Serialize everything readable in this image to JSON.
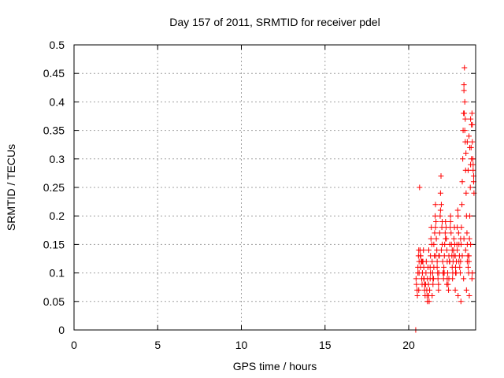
{
  "chart_data": {
    "type": "scatter",
    "title": "Day 157 of 2011, SRMTID for receiver pdel",
    "xlabel": "GPS time / hours",
    "ylabel": "SRMTID / TECUs",
    "xlim": [
      0,
      24
    ],
    "ylim": [
      0,
      0.5
    ],
    "xticks": [
      0,
      5,
      10,
      15,
      20
    ],
    "xtick_labels": [
      "0",
      "5",
      "10",
      "15",
      "20"
    ],
    "yticks": [
      0,
      0.05,
      0.1,
      0.15,
      0.2,
      0.25,
      0.3,
      0.35,
      0.4,
      0.45,
      0.5
    ],
    "ytick_labels": [
      "0",
      "0.05",
      "0.1",
      "0.15",
      "0.2",
      "0.25",
      "0.3",
      "0.35",
      "0.4",
      "0.45",
      "0.5"
    ],
    "grid": true,
    "legend": "none",
    "marker": "+",
    "series": [
      {
        "color": "#ff0000",
        "x": [
          20.42,
          20.44,
          20.46,
          20.5,
          20.52,
          20.55,
          20.58,
          20.6,
          20.62,
          20.65,
          20.68,
          20.7,
          20.72,
          20.75,
          20.78,
          20.8,
          20.82,
          20.85,
          20.88,
          20.9,
          20.92,
          20.95,
          20.98,
          21.0,
          21.03,
          21.05,
          21.08,
          21.1,
          21.12,
          21.15,
          21.18,
          21.2,
          21.22,
          21.25,
          21.28,
          21.3,
          21.33,
          21.35,
          21.38,
          21.4,
          21.43,
          21.45,
          21.48,
          21.5,
          21.53,
          21.55,
          21.58,
          21.6,
          21.63,
          21.65,
          21.68,
          21.7,
          21.73,
          21.75,
          21.78,
          21.8,
          21.83,
          21.85,
          21.88,
          21.9,
          21.93,
          21.95,
          21.98,
          22.0,
          22.03,
          22.05,
          22.08,
          22.1,
          22.13,
          22.15,
          22.18,
          22.2,
          22.23,
          22.25,
          22.28,
          22.3,
          22.33,
          22.35,
          22.38,
          22.4,
          22.43,
          22.45,
          22.48,
          22.5,
          22.53,
          22.55,
          22.58,
          22.6,
          22.63,
          22.65,
          22.68,
          22.7,
          22.73,
          22.75,
          22.78,
          22.8,
          22.83,
          22.85,
          22.88,
          22.9,
          22.93,
          22.95,
          22.98,
          23.0,
          23.03,
          23.05,
          23.08,
          23.1,
          23.13,
          23.15,
          23.18,
          23.2,
          23.23,
          23.25,
          23.28,
          23.3,
          23.33,
          23.35,
          23.38,
          23.4,
          23.43,
          23.45,
          23.48,
          23.5,
          23.53,
          23.55,
          23.58,
          23.6,
          23.63,
          23.65,
          23.68,
          23.7,
          23.73,
          23.75,
          23.78,
          23.8,
          23.83,
          23.85,
          23.88,
          23.9,
          20.55,
          20.6,
          20.7,
          20.8,
          20.9,
          21.0,
          21.1,
          21.2,
          21.3,
          21.4,
          21.5,
          21.6,
          21.7,
          21.8,
          21.9,
          22.0,
          22.1,
          22.2,
          22.3,
          22.4,
          22.5,
          22.6,
          22.7,
          22.8,
          22.9,
          23.0,
          23.1,
          23.2,
          23.3,
          23.4,
          23.5,
          23.6,
          23.7,
          23.8,
          20.62,
          20.78,
          20.95,
          21.12,
          21.28,
          21.45,
          21.62,
          21.78,
          21.95,
          22.12,
          22.28,
          22.45,
          22.62,
          22.78,
          22.95,
          23.12,
          23.28,
          23.45,
          23.62,
          23.78,
          23.3,
          23.32,
          23.35,
          23.38,
          23.42,
          23.5,
          23.55,
          23.6,
          23.65,
          23.7,
          23.75,
          23.8,
          23.85,
          23.88
        ],
        "y": [
          0.0,
          0.09,
          0.08,
          0.07,
          0.06,
          0.1,
          0.13,
          0.14,
          0.12,
          0.25,
          0.14,
          0.11,
          0.13,
          0.12,
          0.09,
          0.08,
          0.1,
          0.12,
          0.14,
          0.11,
          0.09,
          0.07,
          0.06,
          0.08,
          0.1,
          0.12,
          0.07,
          0.06,
          0.09,
          0.11,
          0.08,
          0.06,
          0.05,
          0.07,
          0.09,
          0.13,
          0.16,
          0.18,
          0.15,
          0.12,
          0.1,
          0.08,
          0.09,
          0.11,
          0.13,
          0.17,
          0.2,
          0.22,
          0.19,
          0.16,
          0.14,
          0.12,
          0.1,
          0.09,
          0.08,
          0.1,
          0.13,
          0.17,
          0.2,
          0.24,
          0.27,
          0.22,
          0.18,
          0.15,
          0.12,
          0.1,
          0.09,
          0.11,
          0.13,
          0.15,
          0.17,
          0.19,
          0.18,
          0.16,
          0.14,
          0.12,
          0.1,
          0.08,
          0.07,
          0.09,
          0.12,
          0.15,
          0.18,
          0.2,
          0.17,
          0.15,
          0.13,
          0.11,
          0.1,
          0.12,
          0.14,
          0.16,
          0.18,
          0.15,
          0.13,
          0.11,
          0.1,
          0.12,
          0.15,
          0.18,
          0.21,
          0.2,
          0.17,
          0.15,
          0.13,
          0.11,
          0.1,
          0.12,
          0.15,
          0.18,
          0.22,
          0.26,
          0.3,
          0.35,
          0.38,
          0.42,
          0.46,
          0.4,
          0.33,
          0.28,
          0.24,
          0.2,
          0.17,
          0.15,
          0.13,
          0.11,
          0.1,
          0.12,
          0.16,
          0.2,
          0.25,
          0.29,
          0.32,
          0.36,
          0.38,
          0.33,
          0.3,
          0.28,
          0.26,
          0.24,
          0.11,
          0.07,
          0.13,
          0.12,
          0.09,
          0.08,
          0.06,
          0.14,
          0.1,
          0.06,
          0.15,
          0.18,
          0.11,
          0.13,
          0.21,
          0.19,
          0.1,
          0.16,
          0.09,
          0.13,
          0.19,
          0.14,
          0.13,
          0.1,
          0.14,
          0.12,
          0.16,
          0.13,
          0.16,
          0.14,
          0.12,
          0.13,
          0.15,
          0.1,
          0.1,
          0.12,
          0.08,
          0.05,
          0.11,
          0.09,
          0.13,
          0.07,
          0.14,
          0.1,
          0.08,
          0.12,
          0.09,
          0.07,
          0.06,
          0.05,
          0.09,
          0.07,
          0.06,
          0.09,
          0.43,
          0.38,
          0.35,
          0.37,
          0.31,
          0.33,
          0.28,
          0.34,
          0.32,
          0.37,
          0.3,
          0.36,
          0.29,
          0.27
        ]
      }
    ]
  }
}
